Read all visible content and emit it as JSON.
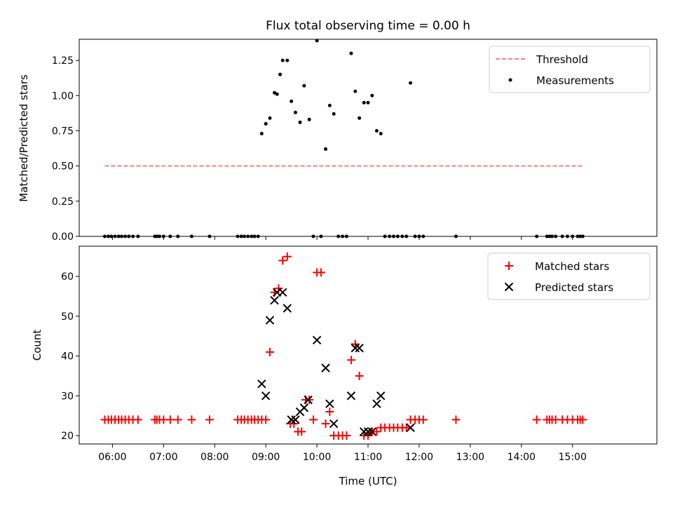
{
  "chart_data": [
    {
      "type": "scatter",
      "title": "Flux total observing time = 0.00 h",
      "xlabel": "",
      "ylabel": "Matched/Predicted stars",
      "ylim": [
        0,
        1.4
      ],
      "yticks": [
        0.0,
        0.25,
        0.5,
        0.75,
        1.0,
        1.25
      ],
      "ytick_labels": [
        "0.00",
        "0.25",
        "0.50",
        "0.75",
        "1.00",
        "1.25"
      ],
      "xlim_hours": [
        5.35,
        16.65
      ],
      "legend_position": "top-right",
      "threshold": {
        "name": "Threshold",
        "value": 0.5,
        "x_range_hours": [
          5.85,
          15.2
        ],
        "color": "#ff7f7f",
        "style": "dashed"
      },
      "series": [
        {
          "name": "Measurements",
          "color": "#000000",
          "marker": "dot",
          "x": [
            5.85,
            5.92,
            5.98,
            6.05,
            6.12,
            6.18,
            6.25,
            6.32,
            6.4,
            6.5,
            6.83,
            6.87,
            6.92,
            7.0,
            7.13,
            7.28,
            7.55,
            7.9,
            8.45,
            8.52,
            8.58,
            8.65,
            8.72,
            8.78,
            8.85,
            8.92,
            9.0,
            9.08,
            9.17,
            9.22,
            9.28,
            9.33,
            9.42,
            9.5,
            9.58,
            9.67,
            9.75,
            9.85,
            9.93,
            10.0,
            10.08,
            10.17,
            10.25,
            10.33,
            10.42,
            10.5,
            10.58,
            10.67,
            10.75,
            10.83,
            10.92,
            11.0,
            11.08,
            11.17,
            11.25,
            11.33,
            11.42,
            11.5,
            11.58,
            11.67,
            11.75,
            11.83,
            11.92,
            12.0,
            12.08,
            12.72,
            14.3,
            14.5,
            14.55,
            14.6,
            14.67,
            14.8,
            14.9,
            15.0,
            15.1,
            15.15,
            15.2
          ],
          "y": [
            0,
            0,
            0,
            0,
            0,
            0,
            0,
            0,
            0,
            0,
            0,
            0,
            0,
            0,
            0,
            0,
            0,
            0,
            0,
            0,
            0,
            0,
            0,
            0,
            0,
            0.73,
            0.8,
            0.84,
            1.02,
            1.01,
            1.15,
            1.25,
            1.25,
            0.96,
            0.88,
            0.81,
            1.07,
            0.83,
            0,
            1.39,
            0,
            0.62,
            0.93,
            0.87,
            0,
            0,
            0,
            1.3,
            1.03,
            0.84,
            0.95,
            0.95,
            1.0,
            0.75,
            0.73,
            0,
            0,
            0,
            0,
            0,
            0,
            1.09,
            0,
            0,
            0,
            0,
            0,
            0,
            0,
            0,
            0,
            0,
            0,
            0,
            0,
            0,
            0
          ]
        }
      ]
    },
    {
      "type": "scatter",
      "title": "",
      "xlabel": "Time (UTC)",
      "ylabel": "Count",
      "ylim": [
        17.9,
        67.6
      ],
      "yticks": [
        20,
        30,
        40,
        50,
        60
      ],
      "ytick_labels": [
        "20",
        "30",
        "40",
        "50",
        "60"
      ],
      "xlim_hours": [
        5.35,
        16.65
      ],
      "xticks_hours": [
        6,
        7,
        8,
        9,
        10,
        11,
        12,
        13,
        14,
        15
      ],
      "xtick_labels": [
        "06:00",
        "07:00",
        "08:00",
        "09:00",
        "10:00",
        "11:00",
        "12:00",
        "13:00",
        "14:00",
        "15:00"
      ],
      "legend_position": "top-right",
      "series": [
        {
          "name": "Matched stars",
          "color": "#ff0000",
          "marker": "plus",
          "x": [
            5.85,
            5.92,
            5.98,
            6.05,
            6.12,
            6.18,
            6.25,
            6.32,
            6.4,
            6.5,
            6.83,
            6.87,
            6.92,
            7.0,
            7.13,
            7.28,
            7.55,
            7.9,
            8.45,
            8.52,
            8.58,
            8.65,
            8.72,
            8.78,
            8.85,
            8.92,
            9.0,
            9.08,
            9.17,
            9.25,
            9.33,
            9.42,
            9.48,
            9.55,
            9.63,
            9.7,
            9.78,
            9.85,
            9.93,
            10.0,
            10.08,
            10.17,
            10.25,
            10.33,
            10.42,
            10.5,
            10.58,
            10.67,
            10.75,
            10.83,
            10.92,
            11.0,
            11.08,
            11.17,
            11.25,
            11.33,
            11.42,
            11.5,
            11.58,
            11.67,
            11.75,
            11.83,
            11.92,
            12.0,
            12.08,
            12.72,
            14.3,
            14.5,
            14.55,
            14.6,
            14.67,
            14.8,
            14.9,
            15.0,
            15.1,
            15.15,
            15.2
          ],
          "y": [
            24,
            24,
            24,
            24,
            24,
            24,
            24,
            24,
            24,
            24,
            24,
            24,
            24,
            24,
            24,
            24,
            24,
            24,
            24,
            24,
            24,
            24,
            24,
            24,
            24,
            24,
            24,
            41,
            56,
            57,
            64,
            65,
            23,
            23,
            21,
            21,
            29,
            29,
            24,
            61,
            61,
            23,
            26,
            20,
            20,
            20,
            20,
            39,
            43,
            35,
            20,
            20,
            21,
            21,
            22,
            22,
            22,
            22,
            22,
            22,
            22,
            24,
            24,
            24,
            24,
            24,
            24,
            24,
            24,
            24,
            24,
            24,
            24,
            24,
            24,
            24,
            24
          ]
        },
        {
          "name": "Predicted stars",
          "color": "#000000",
          "marker": "x",
          "x": [
            8.92,
            9.0,
            9.08,
            9.17,
            9.22,
            9.33,
            9.42,
            9.5,
            9.58,
            9.67,
            9.75,
            9.83,
            10.0,
            10.17,
            10.25,
            10.33,
            10.67,
            10.75,
            10.83,
            10.92,
            11.0,
            11.08,
            11.17,
            11.25,
            11.83
          ],
          "y": [
            33,
            30,
            49,
            54,
            56,
            56,
            52,
            24,
            24,
            26,
            27,
            29,
            44,
            37,
            28,
            23,
            30,
            42,
            42,
            21,
            21,
            21,
            28,
            30,
            22
          ]
        }
      ]
    }
  ]
}
